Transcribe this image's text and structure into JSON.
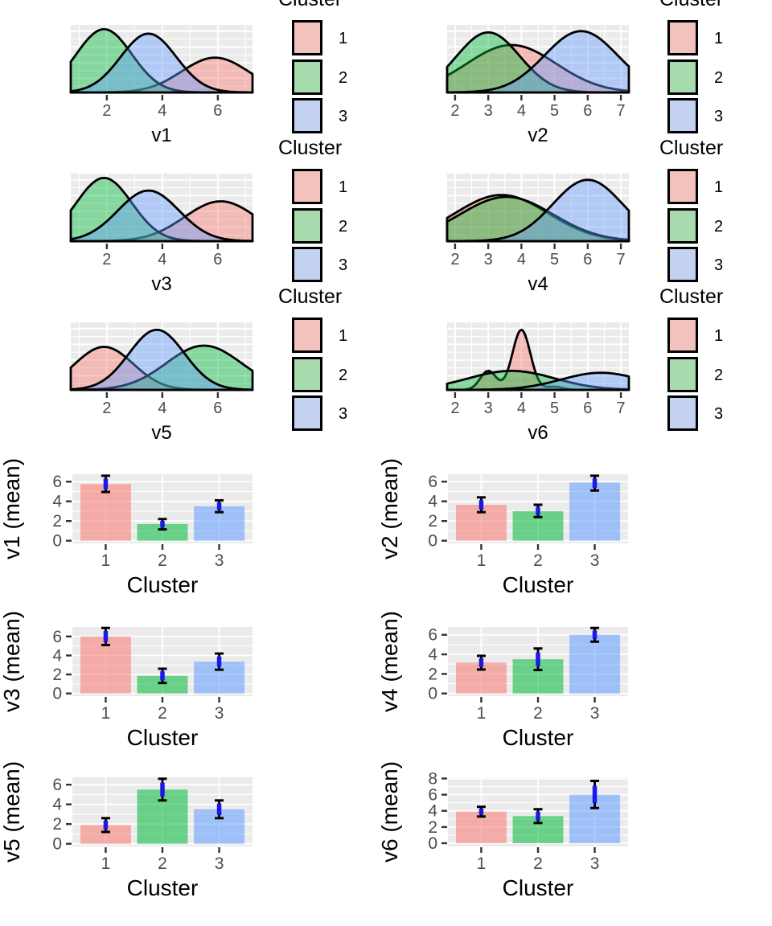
{
  "figure": {
    "description": "Grid of cluster density plots (v1-v6) and cluster mean bar charts with error bars"
  },
  "palette": {
    "cluster_colors": {
      "1": "#F8766D",
      "2": "#00BA38",
      "3": "#619CFF"
    },
    "legend_swatch_colors": {
      "1": "#F2C2BD",
      "2": "#A7DAAC",
      "3": "#C3D2F1"
    },
    "panel_background": "#EBEBEB",
    "grid_line": "#FFFFFF",
    "tick_mark": "#333333",
    "tick_label": "#4D4D4D",
    "axis_title": "#000000",
    "curve_stroke": "#000000",
    "errorbar_black": "#000000",
    "errorbar_blue": "#1A1AE8",
    "density_fill_opacity": 0.42,
    "bar_fill_opacity": 0.55
  },
  "legend": {
    "title": "Cluster",
    "entries": [
      {
        "label": "1",
        "cluster": "1"
      },
      {
        "label": "2",
        "cluster": "2"
      },
      {
        "label": "3",
        "cluster": "3"
      }
    ]
  },
  "chart_data": [
    {
      "type": "density",
      "id": "v1",
      "xlabel": "v1",
      "x_domain": [
        0.7,
        7.25
      ],
      "x_ticks": [
        2,
        4,
        6
      ],
      "x_minor_ticks": [
        1,
        3,
        5,
        7
      ],
      "series": [
        {
          "cluster": "1",
          "components": [
            {
              "mu": 5.9,
              "sigma": 1.2,
              "peak": 0.55
            }
          ]
        },
        {
          "cluster": "2",
          "components": [
            {
              "mu": 1.9,
              "sigma": 1.0,
              "peak": 1.0
            }
          ]
        },
        {
          "cluster": "3",
          "components": [
            {
              "mu": 3.5,
              "sigma": 1.0,
              "peak": 0.93
            }
          ]
        }
      ]
    },
    {
      "type": "density",
      "id": "v2",
      "xlabel": "v2",
      "x_domain": [
        1.76,
        7.24
      ],
      "x_ticks": [
        2,
        3,
        4,
        5,
        6,
        7
      ],
      "x_minor_ticks": [
        2.5,
        3.5,
        4.5,
        5.5,
        6.5
      ],
      "series": [
        {
          "cluster": "1",
          "components": [
            {
              "mu": 3.7,
              "sigma": 1.35,
              "peak": 0.75
            }
          ]
        },
        {
          "cluster": "2",
          "components": [
            {
              "mu": 3.0,
              "sigma": 0.95,
              "peak": 0.95
            }
          ]
        },
        {
          "cluster": "3",
          "components": [
            {
              "mu": 5.8,
              "sigma": 1.1,
              "peak": 0.97
            }
          ]
        }
      ]
    },
    {
      "type": "density",
      "id": "v3",
      "xlabel": "v3",
      "x_domain": [
        0.7,
        7.25
      ],
      "x_ticks": [
        2,
        4,
        6
      ],
      "x_minor_ticks": [
        1,
        3,
        5,
        7
      ],
      "series": [
        {
          "cluster": "1",
          "components": [
            {
              "mu": 6.1,
              "sigma": 1.3,
              "peak": 0.63
            }
          ]
        },
        {
          "cluster": "2",
          "components": [
            {
              "mu": 1.9,
              "sigma": 1.0,
              "peak": 1.0
            }
          ]
        },
        {
          "cluster": "3",
          "components": [
            {
              "mu": 3.5,
              "sigma": 1.1,
              "peak": 0.8
            }
          ]
        }
      ]
    },
    {
      "type": "density",
      "id": "v4",
      "xlabel": "v4",
      "x_domain": [
        1.76,
        7.24
      ],
      "x_ticks": [
        2,
        3,
        4,
        5,
        6,
        7
      ],
      "x_minor_ticks": [
        2.5,
        3.5,
        4.5,
        5.5,
        6.5
      ],
      "series": [
        {
          "cluster": "1",
          "components": [
            {
              "mu": 3.4,
              "sigma": 1.4,
              "peak": 0.73
            }
          ]
        },
        {
          "cluster": "2",
          "components": [
            {
              "mu": 3.55,
              "sigma": 1.4,
              "peak": 0.7
            }
          ]
        },
        {
          "cluster": "3",
          "components": [
            {
              "mu": 6.0,
              "sigma": 1.05,
              "peak": 0.97
            }
          ]
        }
      ]
    },
    {
      "type": "density",
      "id": "v5",
      "xlabel": "v5",
      "x_domain": [
        0.7,
        7.25
      ],
      "x_ticks": [
        2,
        4,
        6
      ],
      "x_minor_ticks": [
        1,
        3,
        5,
        7
      ],
      "series": [
        {
          "cluster": "1",
          "components": [
            {
              "mu": 1.9,
              "sigma": 1.05,
              "peak": 0.68
            }
          ]
        },
        {
          "cluster": "2",
          "components": [
            {
              "mu": 5.5,
              "sigma": 1.35,
              "peak": 0.7
            }
          ]
        },
        {
          "cluster": "3",
          "components": [
            {
              "mu": 3.8,
              "sigma": 1.0,
              "peak": 0.95
            }
          ]
        }
      ]
    },
    {
      "type": "density",
      "id": "v6",
      "xlabel": "v6",
      "x_domain": [
        1.76,
        7.24
      ],
      "x_ticks": [
        2,
        3,
        4,
        5,
        6,
        7
      ],
      "x_minor_ticks": [
        2.5,
        3.5,
        4.5,
        5.5,
        6.5
      ],
      "series": [
        {
          "cluster": "1",
          "components": [
            {
              "mu": 3.0,
              "sigma": 0.24,
              "peak": 0.3
            },
            {
              "mu": 4.0,
              "sigma": 0.27,
              "peak": 0.95
            },
            {
              "mu": 5.0,
              "sigma": 0.25,
              "peak": 0.05
            }
          ]
        },
        {
          "cluster": "2",
          "components": [
            {
              "mu": 3.7,
              "sigma": 1.3,
              "peak": 0.3
            }
          ]
        },
        {
          "cluster": "3",
          "components": [
            {
              "mu": 6.4,
              "sigma": 1.2,
              "peak": 0.27
            }
          ]
        }
      ]
    },
    {
      "type": "bar",
      "id": "v1_mean",
      "xlabel": "Cluster",
      "ylabel": "v1 (mean)",
      "categories": [
        "1",
        "2",
        "3"
      ],
      "means": [
        5.75,
        1.7,
        3.5
      ],
      "err_low": [
        4.95,
        1.15,
        2.9
      ],
      "err_high": [
        6.6,
        2.2,
        4.1
      ],
      "y_ticks": [
        0,
        2,
        4,
        6
      ],
      "y_domain": [
        -0.27,
        6.75
      ]
    },
    {
      "type": "bar",
      "id": "v2_mean",
      "xlabel": "Cluster",
      "ylabel": "v2 (mean)",
      "categories": [
        "1",
        "2",
        "3"
      ],
      "means": [
        3.65,
        3.0,
        5.9
      ],
      "err_low": [
        2.9,
        2.4,
        5.1
      ],
      "err_high": [
        4.4,
        3.65,
        6.6
      ],
      "y_ticks": [
        0,
        2,
        4,
        6
      ],
      "y_domain": [
        -0.27,
        6.75
      ]
    },
    {
      "type": "bar",
      "id": "v3_mean",
      "xlabel": "Cluster",
      "ylabel": "v3 (mean)",
      "categories": [
        "1",
        "2",
        "3"
      ],
      "means": [
        6.0,
        1.85,
        3.35
      ],
      "err_low": [
        5.1,
        1.1,
        2.5
      ],
      "err_high": [
        6.9,
        2.6,
        4.2
      ],
      "y_ticks": [
        0,
        2,
        4,
        6
      ],
      "y_domain": [
        -0.28,
        7.0
      ]
    },
    {
      "type": "bar",
      "id": "v4_mean",
      "xlabel": "Cluster",
      "ylabel": "v4 (mean)",
      "categories": [
        "1",
        "2",
        "3"
      ],
      "means": [
        3.15,
        3.5,
        6.0
      ],
      "err_low": [
        2.45,
        2.4,
        5.3
      ],
      "err_high": [
        3.85,
        4.6,
        6.7
      ],
      "y_ticks": [
        0,
        2,
        4,
        6
      ],
      "y_domain": [
        -0.27,
        6.8
      ]
    },
    {
      "type": "bar",
      "id": "v5_mean",
      "xlabel": "Cluster",
      "ylabel": "v5 (mean)",
      "categories": [
        "1",
        "2",
        "3"
      ],
      "means": [
        1.9,
        5.5,
        3.5
      ],
      "err_low": [
        1.2,
        4.4,
        2.6
      ],
      "err_high": [
        2.6,
        6.6,
        4.4
      ],
      "y_ticks": [
        0,
        2,
        4,
        6
      ],
      "y_domain": [
        -0.27,
        6.75
      ]
    },
    {
      "type": "bar",
      "id": "v6_mean",
      "xlabel": "Cluster",
      "ylabel": "v6 (mean)",
      "categories": [
        "1",
        "2",
        "3"
      ],
      "means": [
        3.9,
        3.35,
        6.0
      ],
      "err_low": [
        3.3,
        2.5,
        4.35
      ],
      "err_high": [
        4.5,
        4.2,
        7.7
      ],
      "y_ticks": [
        0,
        2,
        4,
        6,
        8
      ],
      "y_domain": [
        -0.4,
        8.15
      ]
    }
  ]
}
